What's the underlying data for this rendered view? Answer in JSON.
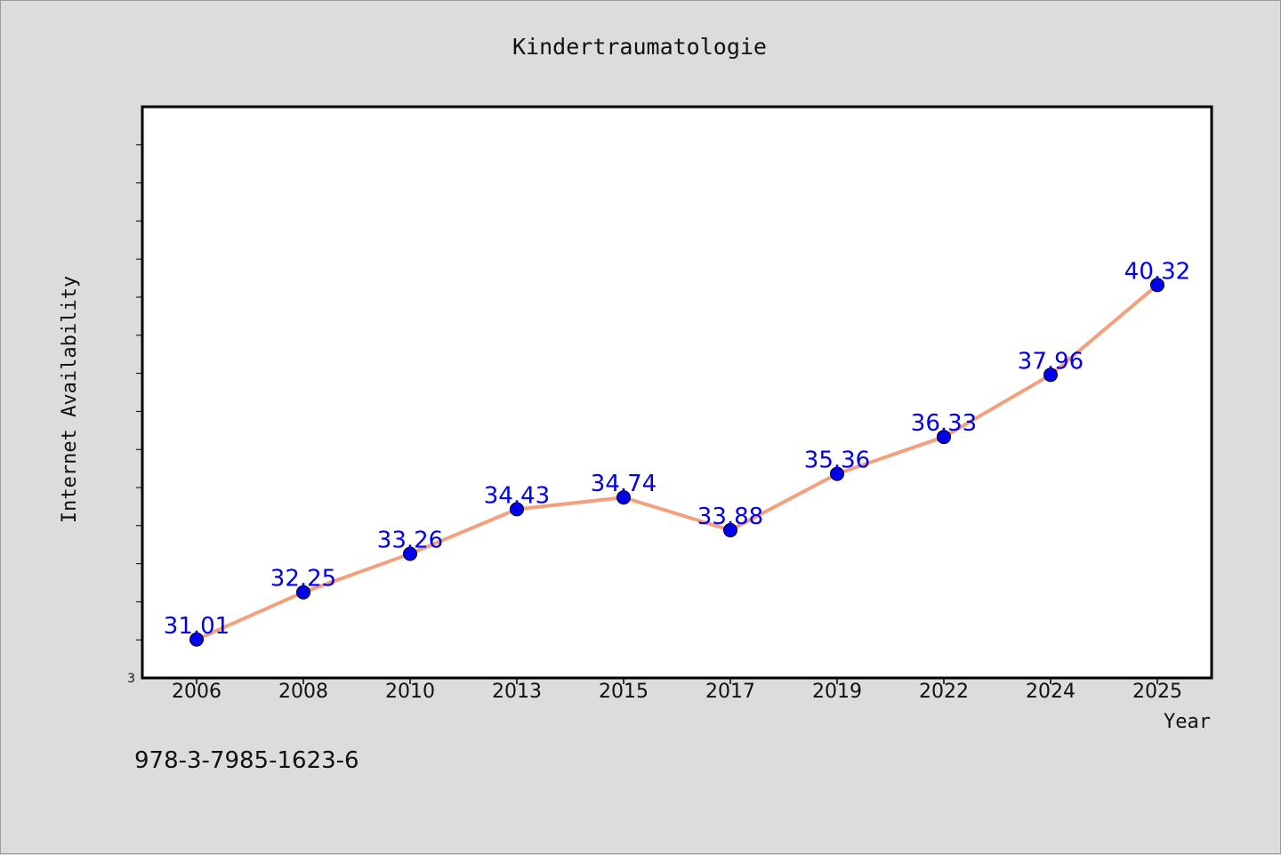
{
  "chart_data": {
    "type": "line",
    "title": "Kindertraumatologie",
    "xlabel": "Year",
    "ylabel": "Internet Availability",
    "categories": [
      "2006",
      "2008",
      "2010",
      "2013",
      "2015",
      "2017",
      "2019",
      "2022",
      "2024",
      "2025"
    ],
    "series": [
      {
        "values": [
          31.01,
          32.25,
          33.26,
          34.43,
          34.74,
          33.88,
          35.36,
          36.33,
          37.96,
          40.32
        ],
        "data_labels": [
          "31.01",
          "32.25",
          "33.26",
          "34.43",
          "34.74",
          "33.88",
          "35.36",
          "36.33",
          "37.96",
          "40.32"
        ],
        "line_color": "#f4a07c",
        "marker_color": "#0000ee"
      }
    ],
    "y_tick_label": "3",
    "ylim": [
      30,
      45
    ],
    "grid": false,
    "legend": "none",
    "label_color": "#0000ee"
  },
  "footer": {
    "isbn": "978-3-7985-1623-6"
  }
}
